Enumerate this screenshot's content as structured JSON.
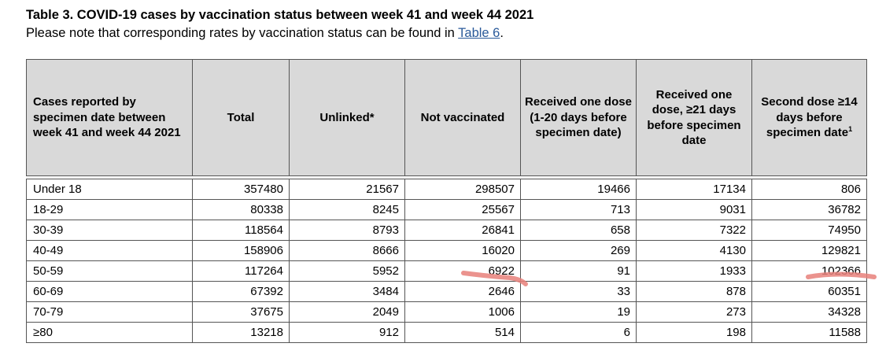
{
  "document": {
    "title": "Table 3. COVID-19 cases by vaccination status between week 41 and week 44 2021",
    "note_prefix": "Please note that corresponding rates by vaccination status can be found in ",
    "note_link": "Table 6",
    "note_suffix": "."
  },
  "table": {
    "headers": [
      "Cases reported by specimen date between week 41 and week 44 2021",
      "Total",
      "Unlinked*",
      "Not vaccinated",
      "Received one dose (1-20 days before specimen date)",
      "Received one dose, ≥21 days before specimen date",
      "Second dose ≥14 days before specimen date",
      "1"
    ],
    "rows": [
      {
        "age": "Under 18",
        "total": "357480",
        "unlinked": "21567",
        "not_vaccinated": "298507",
        "one_dose_1_20": "19466",
        "one_dose_21": "17134",
        "second_dose": "806"
      },
      {
        "age": "18-29",
        "total": "80338",
        "unlinked": "8245",
        "not_vaccinated": "25567",
        "one_dose_1_20": "713",
        "one_dose_21": "9031",
        "second_dose": "36782"
      },
      {
        "age": "30-39",
        "total": "118564",
        "unlinked": "8793",
        "not_vaccinated": "26841",
        "one_dose_1_20": "658",
        "one_dose_21": "7322",
        "second_dose": "74950"
      },
      {
        "age": "40-49",
        "total": "158906",
        "unlinked": "8666",
        "not_vaccinated": "16020",
        "one_dose_1_20": "269",
        "one_dose_21": "4130",
        "second_dose": "129821"
      },
      {
        "age": "50-59",
        "total": "117264",
        "unlinked": "5952",
        "not_vaccinated": "6922",
        "one_dose_1_20": "91",
        "one_dose_21": "1933",
        "second_dose": "102366"
      },
      {
        "age": "60-69",
        "total": "67392",
        "unlinked": "3484",
        "not_vaccinated": "2646",
        "one_dose_1_20": "33",
        "one_dose_21": "878",
        "second_dose": "60351"
      },
      {
        "age": "70-79",
        "total": "37675",
        "unlinked": "2049",
        "not_vaccinated": "1006",
        "one_dose_1_20": "19",
        "one_dose_21": "273",
        "second_dose": "34328"
      },
      {
        "age": "≥80",
        "total": "13218",
        "unlinked": "912",
        "not_vaccinated": "514",
        "one_dose_1_20": "6",
        "one_dose_21": "198",
        "second_dose": "11588"
      }
    ]
  },
  "colors": {
    "header_background": "#d9d9d9",
    "link": "#2a5a9a",
    "annotation_marker": "#e8807a"
  }
}
